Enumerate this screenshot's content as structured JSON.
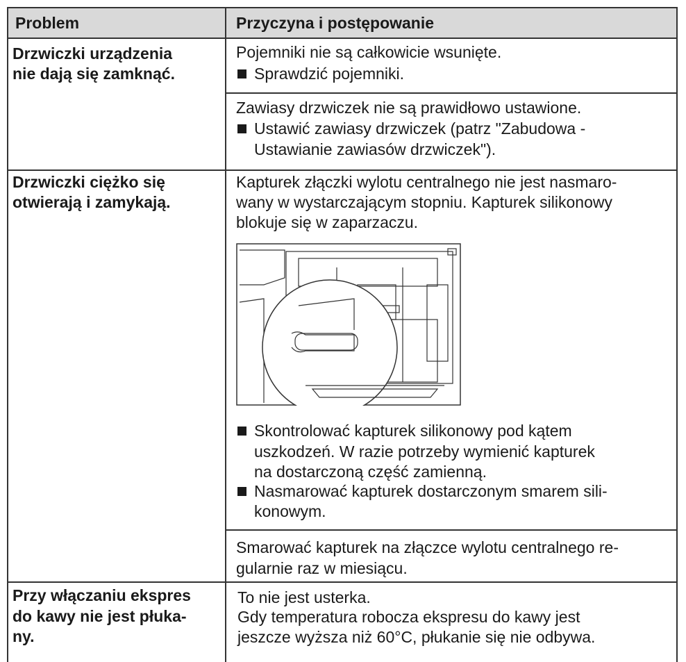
{
  "table": {
    "header": [
      "Problem",
      "Przyczyna i postępowanie"
    ],
    "rows": [
      {
        "problem": [
          "Drzwiczki urządzenia",
          "nie dają się zamknąć."
        ],
        "causes": [
          {
            "text": [
              "Pojemniki nie są całkowicie wsunięte."
            ],
            "steps": [
              [
                "Sprawdzić pojemniki."
              ]
            ]
          },
          {
            "text": [
              "Zawiasy drzwiczek nie są prawidłowo ustawione."
            ],
            "steps": [
              [
                "Ustawić zawiasy drzwiczek (patrz \"Zabudowa -",
                "Ustawianie zawiasów drzwiczek\")."
              ]
            ]
          }
        ]
      },
      {
        "problem": [
          "Drzwiczki ciężko się",
          "otwierają i zamykają."
        ],
        "causes": [
          {
            "text": [
              "Kapturek złączki wylotu centralnego nie jest nasmaro-",
              "wany w wystarczającym stopniu. Kapturek silikonowy",
              "blokuje się w zaparzaczu."
            ],
            "steps": [
              [
                "Skontrolować kapturek silikonowy pod kątem",
                "uszkodzeń. W razie potrzeby wymienić kapturek",
                "na dostarczoną część zamienną."
              ],
              [
                "Nasmarować kapturek dostarczonym smarem sili-",
                "konowym."
              ]
            ]
          },
          {
            "text": [
              "Smarować kapturek na złączce wylotu centralnego re-",
              "gularnie raz w miesiącu."
            ]
          }
        ]
      },
      {
        "problem": [
          "Przy włączaniu ekspres",
          "do kawy nie jest płuka-",
          "ny."
        ],
        "causes": [
          {
            "text": [
              "To nie jest usterka.",
              "Gdy temperatura robocza ekspresu do kawy jest",
              "jeszcze wyższa niż 60°C, płukanie się nie odbywa."
            ]
          }
        ]
      }
    ]
  }
}
